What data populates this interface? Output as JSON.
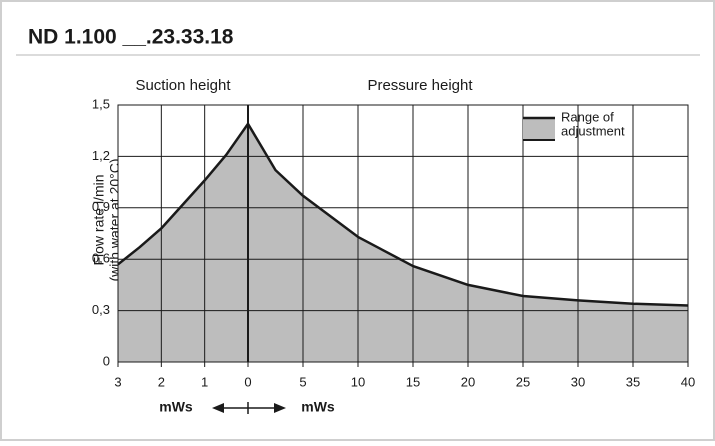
{
  "chart_data": {
    "type": "area",
    "title": "ND 1.100 __.23.33.18",
    "y_label": [
      "Flow rate l/min",
      "(with water at 20°C)"
    ],
    "ylim": [
      0,
      1.5
    ],
    "yticks": [
      0,
      {
        "value": 0.3,
        "label": "0,3"
      },
      {
        "value": 0.6,
        "label": "0,6"
      },
      {
        "value": 0.9,
        "label": "0,9"
      },
      {
        "value": 1.2,
        "label": "1,2"
      },
      {
        "value": 1.5,
        "label": "1,5"
      }
    ],
    "grid": true,
    "fill_color": "#bdbdbd",
    "line_color": "#1a1a1a",
    "legend": {
      "position": "upper right",
      "lines": [
        "Range of",
        "adjustment"
      ]
    },
    "segments": [
      {
        "name": "Suction height",
        "unit": "mWs",
        "xlim": [
          3,
          0
        ],
        "xticks": [
          3,
          2,
          1,
          0
        ],
        "x": [
          3,
          2.5,
          2,
          1.5,
          1,
          0.5,
          0
        ],
        "values": [
          0.57,
          0.67,
          0.78,
          0.92,
          1.06,
          1.21,
          1.39
        ]
      },
      {
        "name": "Pressure height",
        "unit": "mWs",
        "xlim": [
          0,
          40
        ],
        "xticks": [
          5,
          10,
          15,
          20,
          25,
          30,
          35,
          40
        ],
        "x": [
          0,
          2.5,
          5,
          10,
          15,
          20,
          25,
          30,
          35,
          40
        ],
        "values": [
          1.39,
          1.12,
          0.97,
          0.73,
          0.56,
          0.45,
          0.385,
          0.36,
          0.34,
          0.33
        ]
      }
    ]
  }
}
